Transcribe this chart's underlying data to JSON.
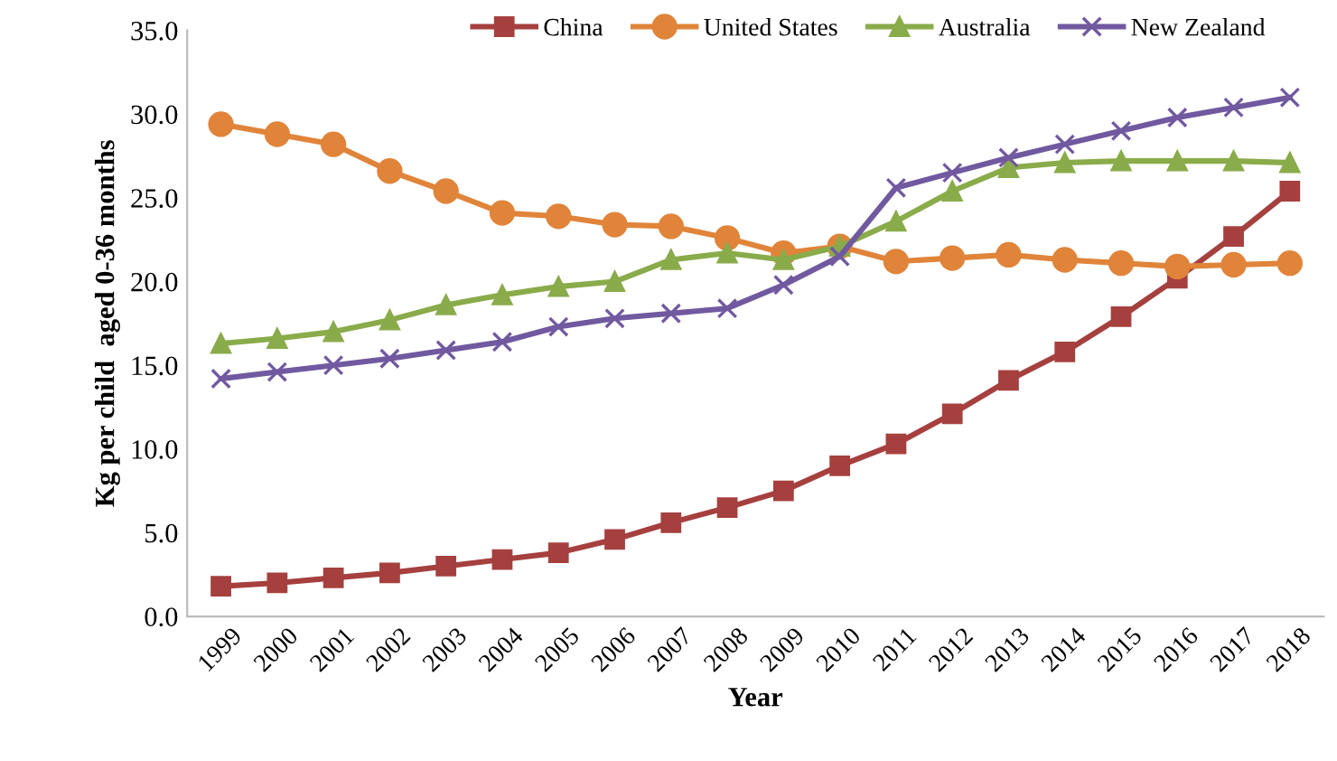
{
  "chart_data": {
    "type": "line",
    "xlabel": "Year",
    "ylabel": "Kg per child  aged 0-36 months",
    "categories": [
      "1999",
      "2000",
      "2001",
      "2002",
      "2003",
      "2004",
      "2005",
      "2006",
      "2007",
      "2008",
      "2009",
      "2010",
      "2011",
      "2012",
      "2013",
      "2014",
      "2015",
      "2016",
      "2017",
      "2018"
    ],
    "series": [
      {
        "name": "China",
        "color": "#a5403f",
        "marker": "square",
        "values": [
          1.8,
          2.0,
          2.3,
          2.6,
          3.0,
          3.4,
          3.8,
          4.6,
          5.6,
          6.5,
          7.5,
          9.0,
          10.3,
          12.1,
          14.1,
          15.8,
          17.9,
          20.2,
          22.7,
          25.4
        ]
      },
      {
        "name": "United States",
        "color": "#e0843a",
        "marker": "circle",
        "values": [
          29.4,
          28.8,
          28.2,
          26.6,
          25.4,
          24.1,
          23.9,
          23.4,
          23.3,
          22.6,
          21.7,
          22.1,
          21.2,
          21.4,
          21.6,
          21.3,
          21.1,
          20.9,
          21.0,
          21.1
        ]
      },
      {
        "name": "Australia",
        "color": "#8aab4a",
        "marker": "triangle",
        "values": [
          16.3,
          16.6,
          17.0,
          17.7,
          18.6,
          19.2,
          19.7,
          20.0,
          21.3,
          21.7,
          21.3,
          22.1,
          23.6,
          25.4,
          26.8,
          27.1,
          27.2,
          27.2,
          27.2,
          27.1
        ]
      },
      {
        "name": "New Zealand",
        "color": "#7159a0",
        "marker": "cross",
        "values": [
          14.2,
          14.6,
          15.0,
          15.4,
          15.9,
          16.4,
          17.3,
          17.8,
          18.1,
          18.4,
          19.8,
          21.5,
          25.6,
          26.5,
          27.4,
          28.2,
          29.0,
          29.8,
          30.4,
          31.0
        ]
      }
    ],
    "ylim": [
      0,
      35
    ],
    "yticks": [
      {
        "value": 0,
        "label": "0.0"
      },
      {
        "value": 5,
        "label": "5.0"
      },
      {
        "value": 10,
        "label": "10.0"
      },
      {
        "value": 15,
        "label": "15.0"
      },
      {
        "value": 20,
        "label": "20.0"
      },
      {
        "value": 25,
        "label": "25.0"
      },
      {
        "value": 30,
        "label": "30.0"
      },
      {
        "value": 35,
        "label": "35.0"
      }
    ],
    "grid": false,
    "legend": "top",
    "line_style": "solid"
  }
}
